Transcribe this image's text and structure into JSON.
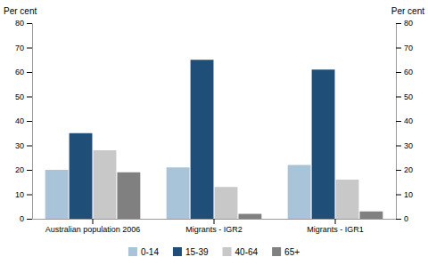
{
  "chart_data": {
    "type": "bar",
    "categories": [
      "Australian population 2006",
      "Migrants - IGR2",
      "Migrants - IGR1"
    ],
    "series": [
      {
        "name": "0-14",
        "color": "#a8c4d8",
        "values": [
          20,
          21,
          22
        ]
      },
      {
        "name": "15-39",
        "color": "#1f4e79",
        "values": [
          35,
          65,
          61
        ]
      },
      {
        "name": "40-64",
        "color": "#c8c8c8",
        "values": [
          28,
          13,
          16
        ]
      },
      {
        "name": "65+",
        "color": "#808080",
        "values": [
          19,
          2,
          3
        ]
      }
    ],
    "ylabel": "Per cent",
    "y2label": "Per cent",
    "ylim": [
      0,
      80
    ],
    "yticks": [
      0,
      10,
      20,
      30,
      40,
      50,
      60,
      70,
      80
    ],
    "y2lim": [
      0,
      80
    ],
    "y2ticks": [
      0,
      10,
      20,
      30,
      40,
      50,
      60,
      70,
      80
    ],
    "grid": false,
    "legend": "bottom"
  }
}
